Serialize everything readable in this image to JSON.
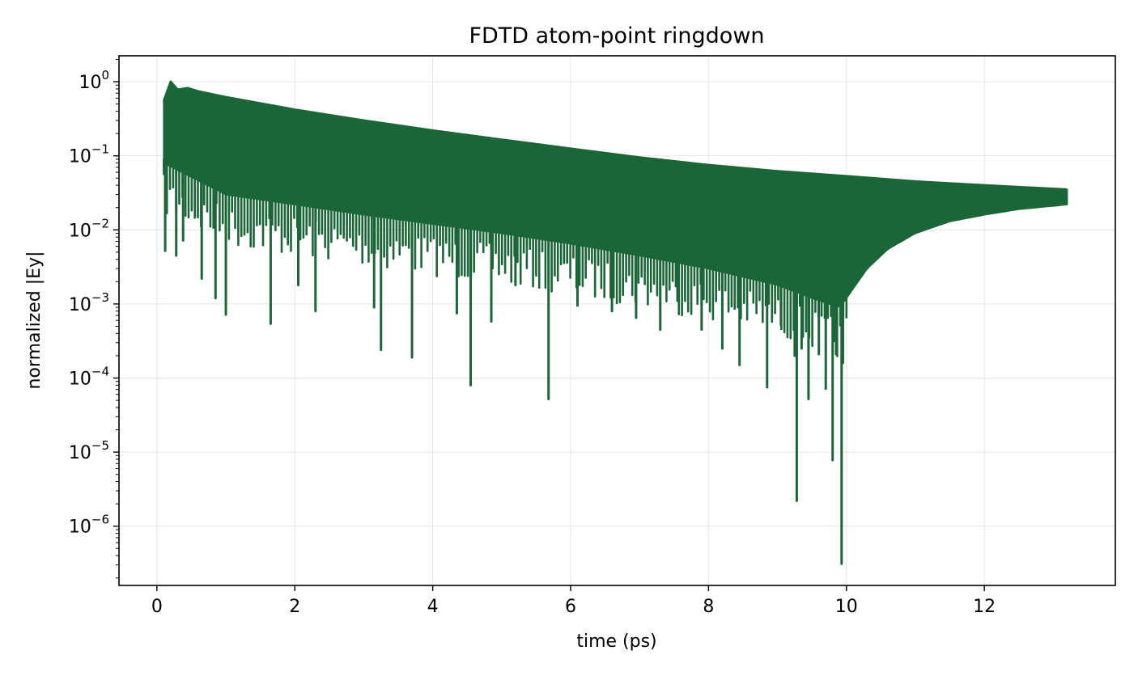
{
  "chart_data": {
    "type": "line",
    "title": "FDTD atom-point ringdown",
    "xlabel": "time (ps)",
    "ylabel": "normalized |Ey|",
    "xlim": [
      -0.55,
      13.9
    ],
    "ylim_log10": [
      -6.8,
      0.35
    ],
    "yscale": "log",
    "grid": true,
    "line_color": "#1b6638",
    "x_ticks": [
      {
        "value": 0,
        "label": "0"
      },
      {
        "value": 2,
        "label": "2"
      },
      {
        "value": 4,
        "label": "4"
      },
      {
        "value": 6,
        "label": "6"
      },
      {
        "value": 8,
        "label": "8"
      },
      {
        "value": 10,
        "label": "10"
      },
      {
        "value": 12,
        "label": "12"
      }
    ],
    "y_ticks": [
      {
        "exp": 0,
        "base": "10",
        "sup": "0"
      },
      {
        "exp": -1,
        "base": "10",
        "sup": "−1"
      },
      {
        "exp": -2,
        "base": "10",
        "sup": "−2"
      },
      {
        "exp": -3,
        "base": "10",
        "sup": "−3"
      },
      {
        "exp": -4,
        "base": "10",
        "sup": "−4"
      },
      {
        "exp": -5,
        "base": "10",
        "sup": "−5"
      },
      {
        "exp": -6,
        "base": "10",
        "sup": "−6"
      }
    ],
    "series": [
      {
        "t_start": 0.1,
        "t_end": 13.2,
        "upper_envelope": [
          [
            0.1,
            0.55
          ],
          [
            0.2,
            1.0
          ],
          [
            0.3,
            0.78
          ],
          [
            0.45,
            0.82
          ],
          [
            0.6,
            0.74
          ],
          [
            1.0,
            0.62
          ],
          [
            2.0,
            0.42
          ],
          [
            3.0,
            0.3
          ],
          [
            4.0,
            0.22
          ],
          [
            5.0,
            0.165
          ],
          [
            6.0,
            0.125
          ],
          [
            7.0,
            0.095
          ],
          [
            8.0,
            0.075
          ],
          [
            9.0,
            0.062
          ],
          [
            10.0,
            0.053
          ],
          [
            11.0,
            0.045
          ],
          [
            12.0,
            0.04
          ],
          [
            13.2,
            0.035
          ]
        ],
        "lower_envelope": [
          [
            0.1,
            0.08
          ],
          [
            1.0,
            0.03
          ],
          [
            2.0,
            0.022
          ],
          [
            3.0,
            0.016
          ],
          [
            4.0,
            0.012
          ],
          [
            5.0,
            0.009
          ],
          [
            6.0,
            0.0065
          ],
          [
            7.0,
            0.0045
          ],
          [
            8.0,
            0.003
          ],
          [
            9.0,
            0.0018
          ],
          [
            9.5,
            0.0012
          ],
          [
            9.9,
            0.0009
          ],
          [
            10.0,
            0.0012
          ],
          [
            10.3,
            0.003
          ],
          [
            10.6,
            0.0055
          ],
          [
            11.0,
            0.009
          ],
          [
            11.5,
            0.013
          ],
          [
            12.0,
            0.016
          ],
          [
            12.5,
            0.019
          ],
          [
            13.2,
            0.022
          ]
        ],
        "deep_minima": [
          [
            0.12,
            0.0052
          ],
          [
            0.28,
            0.0045
          ],
          [
            0.38,
            0.0072
          ],
          [
            0.65,
            0.0022
          ],
          [
            0.85,
            0.0012
          ],
          [
            1.0,
            0.00072
          ],
          [
            1.65,
            0.00054
          ],
          [
            2.05,
            0.0018
          ],
          [
            2.3,
            0.0008
          ],
          [
            3.15,
            0.0009
          ],
          [
            3.25,
            0.00024
          ],
          [
            3.7,
            0.00019
          ],
          [
            4.35,
            0.00075
          ],
          [
            4.55,
            8e-05
          ],
          [
            4.85,
            0.00058
          ],
          [
            5.2,
            0.0018
          ],
          [
            5.68,
            5.2e-05
          ],
          [
            6.1,
            0.00095
          ],
          [
            6.6,
            0.0008
          ],
          [
            6.95,
            0.00065
          ],
          [
            7.3,
            0.00045
          ],
          [
            7.55,
            0.0011
          ],
          [
            7.9,
            0.00045
          ],
          [
            8.2,
            0.00025
          ],
          [
            8.45,
            0.00015
          ],
          [
            8.85,
            7.5e-05
          ],
          [
            9.05,
            0.00052
          ],
          [
            9.25,
            0.0002
          ],
          [
            9.28,
            2.2e-06
          ],
          [
            9.35,
            0.00025
          ],
          [
            9.45,
            5.2e-05
          ],
          [
            9.6,
            0.00021
          ],
          [
            9.7,
            7.2e-05
          ],
          [
            9.8,
            7.8e-06
          ],
          [
            9.85,
            0.00021
          ],
          [
            9.93,
            3.1e-07
          ],
          [
            9.95,
            0.00016
          ]
        ]
      }
    ]
  }
}
